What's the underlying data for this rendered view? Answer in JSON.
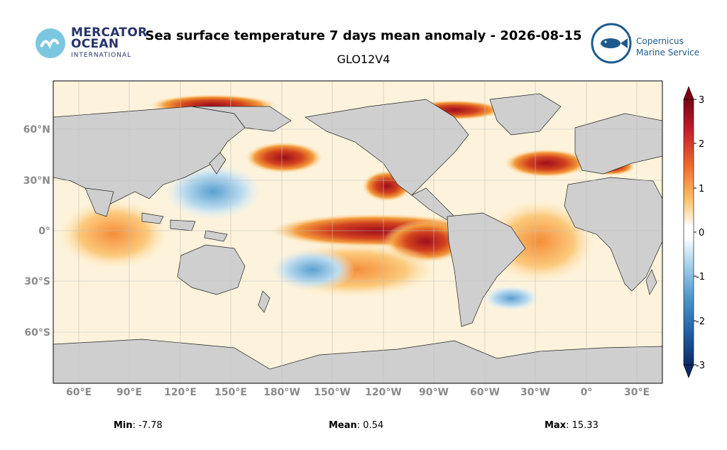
{
  "title": "Sea surface temperature 7 days mean anomaly - 2026-08-15",
  "subtitle": "GLO12V4",
  "logo_left": {
    "line1": "MERCATOR",
    "line2": "OCEAN",
    "line3": "INTERNATIONAL"
  },
  "logo_right": {
    "line1": "Copernicus",
    "line2": "Marine Service"
  },
  "lat_labels": [
    "60°N",
    "30°N",
    "0°",
    "30°S",
    "60°S"
  ],
  "lon_labels": [
    "60°E",
    "90°E",
    "120°E",
    "150°E",
    "180°W",
    "150°W",
    "120°W",
    "90°W",
    "60°W",
    "30°W",
    "0°",
    "30°E"
  ],
  "colorbar": {
    "ticks": [
      "3",
      "2",
      "1",
      "0",
      "-1",
      "-2",
      "-3"
    ]
  },
  "stats": {
    "min_label": "Min",
    "min_value": ": -7.78",
    "mean_label": "Mean",
    "mean_value": ": 0.54",
    "max_label": "Max",
    "max_value": ": 15.33"
  },
  "colors": {
    "land": "#cfcfcf",
    "warm": "#b2182b",
    "cool": "#2166ac",
    "neutral": "#ffffff"
  }
}
